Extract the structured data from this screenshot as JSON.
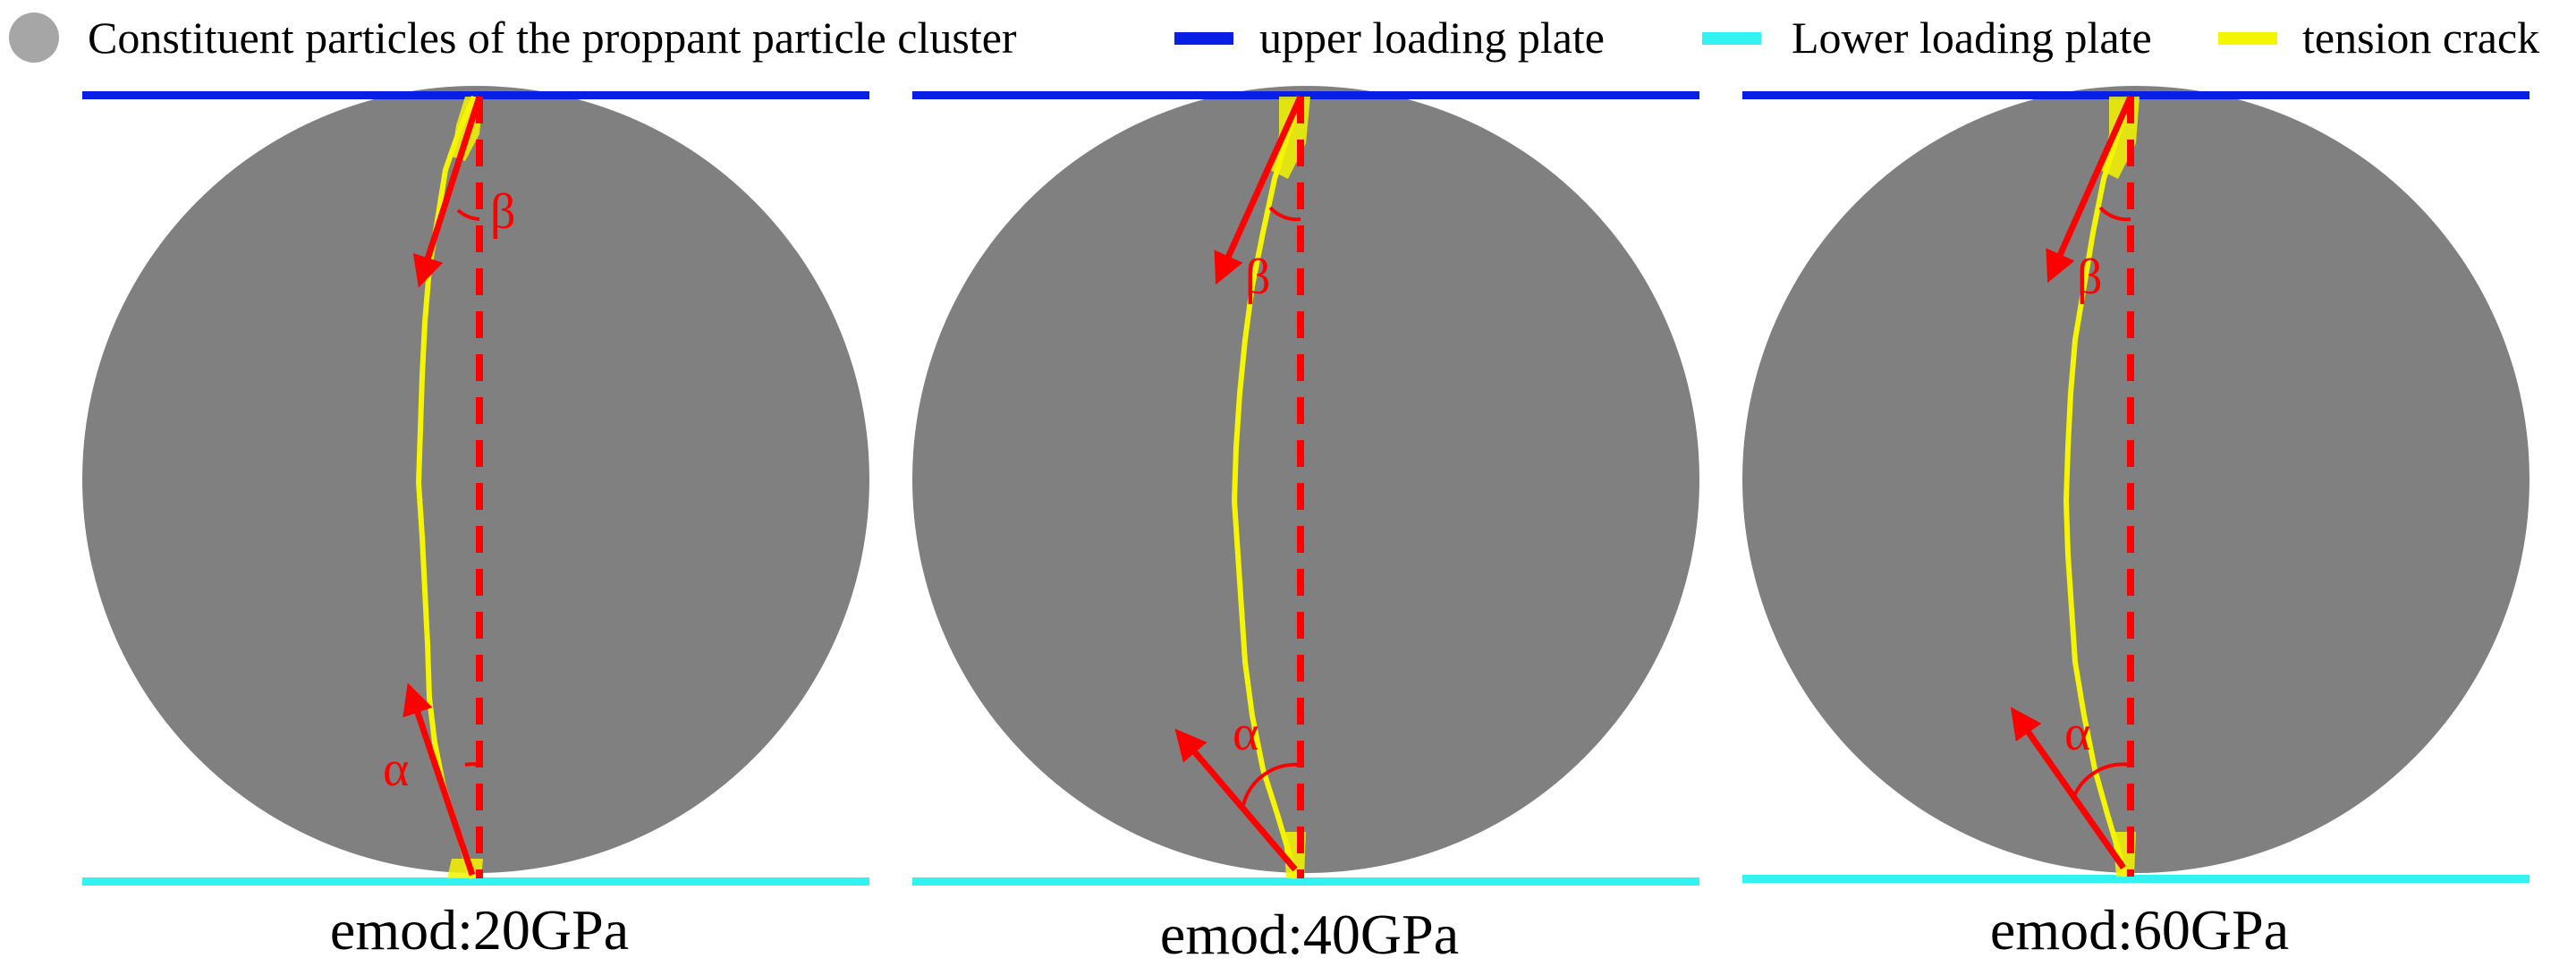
{
  "legend": [
    {
      "label": "Constituent particles of the proppant particle cluster",
      "symbol": "circle",
      "color": "#a6a6a6"
    },
    {
      "label": "upper loading plate",
      "symbol": "line",
      "color": "#0a1fe6"
    },
    {
      "label": "Lower loading plate",
      "symbol": "line",
      "color": "#33f2f2"
    },
    {
      "label": "tension crack",
      "symbol": "line",
      "color": "#f5f500"
    }
  ],
  "panels": [
    {
      "caption": "emod:20GPa",
      "angle_top": "β",
      "angle_bottom": "α"
    },
    {
      "caption": "emod:40GPa",
      "angle_top": "β",
      "angle_bottom": "α"
    },
    {
      "caption": "emod:60GPa",
      "angle_top": "β",
      "angle_bottom": "α"
    }
  ],
  "colors": {
    "disc": "#808080",
    "upper_plate": "#0a1fe6",
    "lower_plate": "#33f2f2",
    "crack": "#f5f500",
    "arrow": "#ff0000",
    "axis": "#ff0000"
  }
}
